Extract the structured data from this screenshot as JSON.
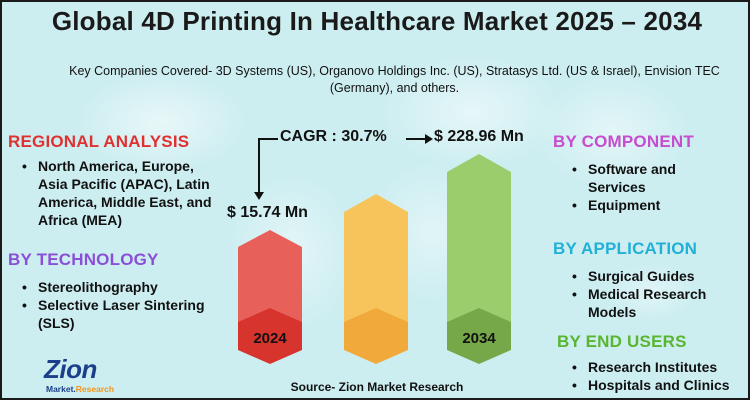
{
  "title": "Global 4D Printing In Healthcare Market 2025 – 2034",
  "companies": "Key Companies Covered- 3D Systems (US), Organovo Holdings Inc. (US), Stratasys Ltd. (US & Israel), Envision TEC (Germany), and others.",
  "regional": {
    "heading": "REGIONAL ANALYSIS",
    "items": [
      "North America, Europe, Asia Pacific (APAC), Latin America, Middle East, and Africa (MEA)"
    ]
  },
  "technology": {
    "heading": "BY TECHNOLOGY",
    "items": [
      "Stereolithography",
      "Selective Laser Sintering (SLS)"
    ]
  },
  "component": {
    "heading": "BY COMPONENT",
    "items": [
      "Software and Services",
      "Equipment"
    ]
  },
  "application": {
    "heading": "BY APPLICATION",
    "items": [
      "Surgical Guides",
      "Medical Research Models"
    ]
  },
  "end_users": {
    "heading": "BY END USERS",
    "items": [
      "Research Institutes",
      "Hospitals and Clinics"
    ]
  },
  "cagr_label": "CAGR : 30.7%",
  "value_start_label": "$ 15.74 Mn",
  "value_end_label": "$ 228.96 Mn",
  "source": "Source- Zion Market Research",
  "logo": {
    "main": "Zion",
    "sub_a": "Market.",
    "sub_b": "Research"
  },
  "colors": {
    "regional": "#e03131",
    "technology": "#8a4fd8",
    "component": "#c64dd0",
    "application": "#22b0d6",
    "end_users": "#5ab531",
    "bar_2024": "#e8605a",
    "bar_mid": "#f7c45c",
    "bar_2034": "#9ccd6c",
    "hex_2024": "#d8342e",
    "hex_mid": "#f0a93a",
    "hex_2034": "#76a84a"
  },
  "chart_data": {
    "type": "bar",
    "title": "Global 4D Printing In Healthcare Market 2025 – 2034",
    "categories": [
      "2024",
      "",
      "2034"
    ],
    "values": [
      15.74,
      null,
      228.96
    ],
    "value_labels": [
      "$ 15.74 Mn",
      "",
      "$ 228.96 Mn"
    ],
    "unit": "USD Mn",
    "cagr": "30.7%",
    "annotation": "CAGR : 30.7%"
  }
}
